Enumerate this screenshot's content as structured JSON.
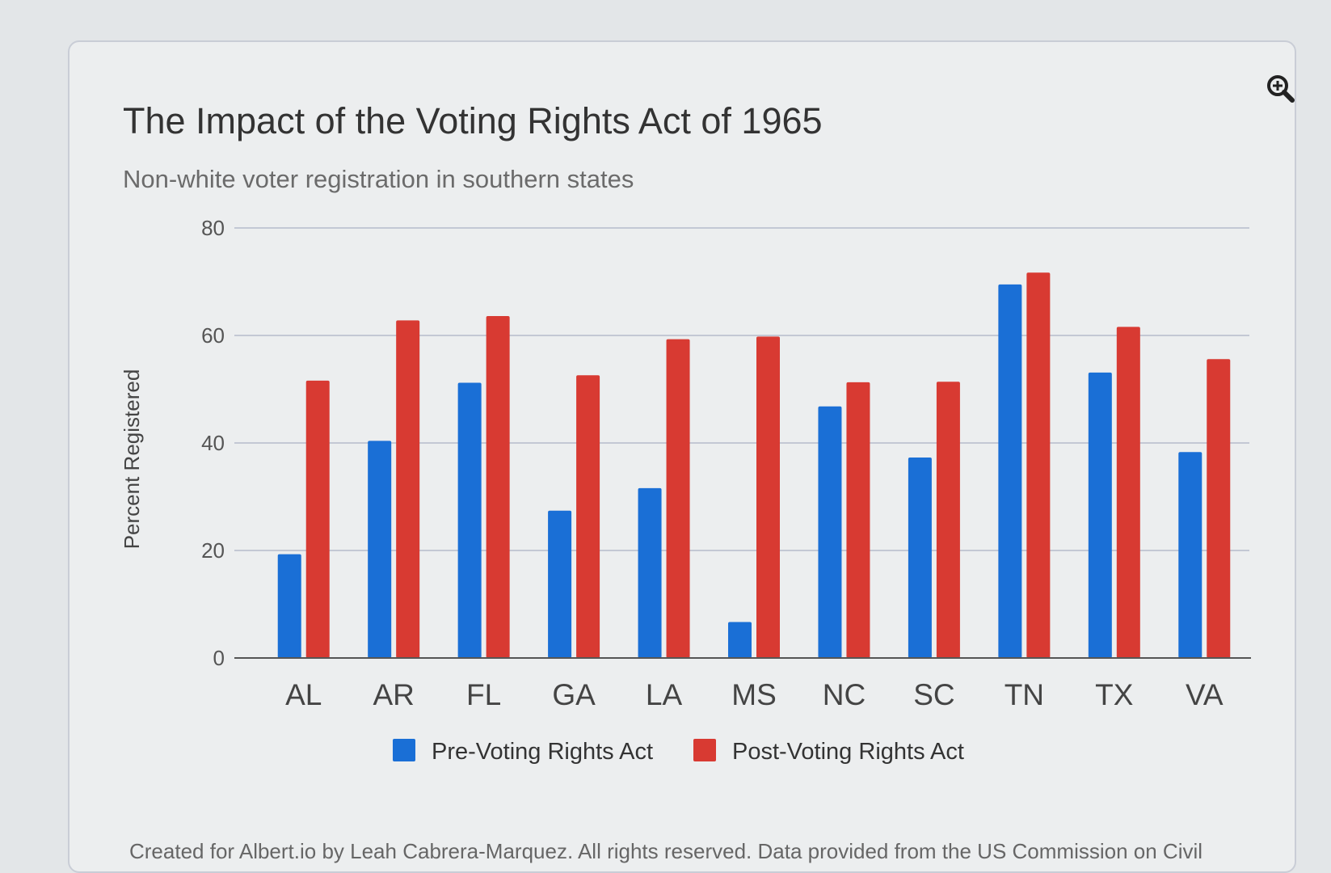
{
  "zoom_icon": "zoom-in-icon",
  "chart_data": {
    "type": "bar",
    "title": "The Impact of the Voting Rights Act of 1965",
    "subtitle": "Non-white voter registration in southern states",
    "xlabel": "",
    "ylabel": "Percent Registered",
    "ylim": [
      0,
      80
    ],
    "yticks": [
      0,
      20,
      40,
      60,
      80
    ],
    "grid": true,
    "legend_position": "bottom-center",
    "categories": [
      "AL",
      "AR",
      "FL",
      "GA",
      "LA",
      "MS",
      "NC",
      "SC",
      "TN",
      "TX",
      "VA"
    ],
    "series": [
      {
        "name": "Pre-Voting Rights Act",
        "color": "#1a6fd6",
        "values": [
          19.3,
          40.4,
          51.2,
          27.4,
          31.6,
          6.7,
          46.8,
          37.3,
          69.5,
          53.1,
          38.3
        ]
      },
      {
        "name": "Post-Voting Rights Act",
        "color": "#d83a32",
        "values": [
          51.6,
          62.8,
          63.6,
          52.6,
          59.3,
          59.8,
          51.3,
          51.4,
          71.7,
          61.6,
          55.6
        ]
      }
    ],
    "credits": "Created for Albert.io by Leah Cabrera-Marquez. All rights reserved. Data provided from the US Commission on Civil"
  }
}
